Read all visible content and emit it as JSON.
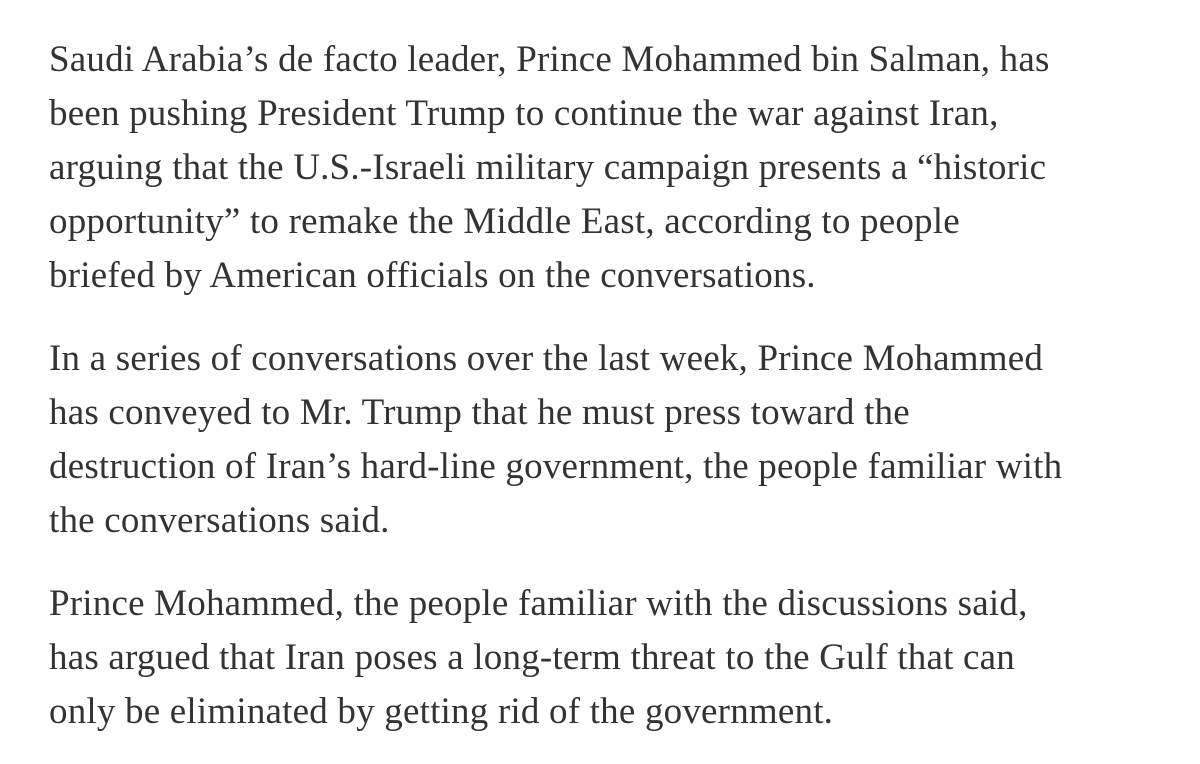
{
  "article": {
    "paragraphs": [
      {
        "lines": [
          "Saudi Arabia’s de facto leader, Prince Mohammed bin Salman, has",
          "been pushing President Trump to continue the war against Iran,",
          "arguing that the U.S.-Israeli military campaign presents a “historic",
          "opportunity” to remake the Middle East, according to people",
          "briefed by American officials on the conversations."
        ]
      },
      {
        "lines": [
          "In a series of conversations over the last week, Prince Mohammed",
          "has conveyed to Mr. Trump that he must press toward the",
          "destruction of Iran’s hard-line government, the people familiar with",
          "the conversations said."
        ]
      },
      {
        "lines": [
          "Prince Mohammed, the people familiar with the discussions said,",
          "has argued that Iran poses a long-term threat to the Gulf that can",
          "only be eliminated by getting rid of the government."
        ]
      }
    ]
  }
}
